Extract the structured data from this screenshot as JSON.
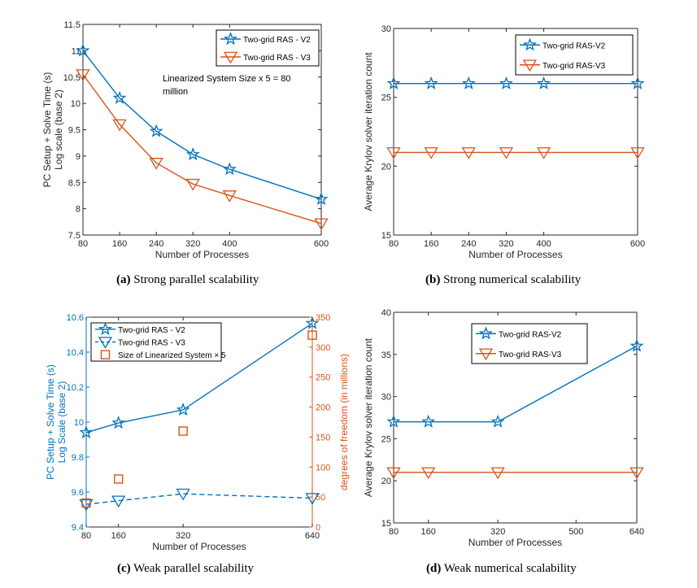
{
  "colors": {
    "blue": "#0072BD",
    "orange": "#D95319",
    "axis": "#262626"
  },
  "chart_data": [
    {
      "id": "a",
      "type": "line",
      "caption_letter": "(a)",
      "caption": "Strong parallel scalability",
      "xlabel": "Number of Processes",
      "ylabel": [
        "PC Setup + Solve Time (s)",
        "Log scale (base 2)"
      ],
      "xlim": [
        80,
        600
      ],
      "ylim": [
        7.5,
        11.5
      ],
      "xticks": [
        80,
        160,
        240,
        320,
        400,
        600
      ],
      "yticks": [
        7.5,
        8,
        8.5,
        9,
        9.5,
        10,
        10.5,
        11,
        11.5
      ],
      "x": [
        80,
        160,
        240,
        320,
        400,
        600
      ],
      "series": [
        {
          "name": "Two-grid RAS - V2",
          "color": "blue",
          "marker": "star",
          "values": [
            11.0,
            10.1,
            9.47,
            9.03,
            8.75,
            8.18
          ]
        },
        {
          "name": "Two-grid RAS - V3",
          "color": "orange",
          "marker": "triangle-down",
          "values": [
            10.55,
            9.6,
            8.87,
            8.47,
            8.25,
            7.72
          ]
        }
      ],
      "legend": "top-right",
      "annotation": [
        "Linearized System Size x 5 = 80",
        "million"
      ]
    },
    {
      "id": "b",
      "type": "line",
      "caption_letter": "(b)",
      "caption": "Strong numerical scalability",
      "xlabel": "Number of Processes",
      "ylabel": [
        "Average Krylov solver iteration count"
      ],
      "xlim": [
        80,
        600
      ],
      "ylim": [
        15,
        30
      ],
      "xticks": [
        80,
        160,
        240,
        320,
        400,
        600
      ],
      "yticks": [
        15,
        20,
        25,
        30
      ],
      "x": [
        80,
        160,
        240,
        320,
        400,
        600
      ],
      "series": [
        {
          "name": "Two-grid RAS-V2",
          "color": "blue",
          "marker": "star",
          "values": [
            26,
            26,
            26,
            26,
            26,
            26
          ]
        },
        {
          "name": "Two-grid RAS-V3",
          "color": "orange",
          "marker": "triangle-down",
          "values": [
            21,
            21,
            21,
            21,
            21,
            21
          ]
        }
      ],
      "legend": "top-right"
    },
    {
      "id": "c",
      "type": "line",
      "caption_letter": "(c)",
      "caption": "Weak parallel scalability",
      "xlabel": "Number of Processes",
      "ylabel": [
        "PC Setup + Solve Time (s)",
        "Log Scale (base 2)"
      ],
      "ylabel_right": "degrees of freedom (in millions)",
      "xlim": [
        80,
        640
      ],
      "ylim": [
        9.4,
        10.6
      ],
      "ylim_right": [
        0,
        350
      ],
      "xticks": [
        80,
        160,
        320,
        640
      ],
      "yticks": [
        9.4,
        9.6,
        9.8,
        10,
        10.2,
        10.4,
        10.6
      ],
      "yticks_right": [
        0,
        50,
        100,
        150,
        200,
        250,
        300,
        350
      ],
      "x": [
        80,
        160,
        320,
        640
      ],
      "series": [
        {
          "name": "Two-grid RAS - V2",
          "color": "blue",
          "marker": "star",
          "line": "solid",
          "axis": "left",
          "values": [
            9.94,
            9.995,
            10.07,
            10.565
          ]
        },
        {
          "name": "Two-grid RAS - V3",
          "color": "blue",
          "marker": "triangle-down",
          "line": "dashed",
          "axis": "left",
          "values": [
            9.53,
            9.55,
            9.59,
            9.565
          ]
        },
        {
          "name": "Size of Linearized System × 5",
          "color": "orange",
          "marker": "square",
          "line": "none",
          "axis": "right",
          "values": [
            40,
            80,
            160,
            320
          ]
        }
      ],
      "legend": "top-left"
    },
    {
      "id": "d",
      "type": "line",
      "caption_letter": "(d)",
      "caption": "Weak numerical scalability",
      "xlabel": "Number of Processes",
      "ylabel": [
        "Average Krylov solver iteration count"
      ],
      "xlim": [
        80,
        640
      ],
      "ylim": [
        15,
        40
      ],
      "xticks": [
        80,
        160,
        320,
        500,
        640
      ],
      "yticks": [
        15,
        20,
        25,
        30,
        35,
        40
      ],
      "x": [
        80,
        160,
        320,
        640
      ],
      "series": [
        {
          "name": "Two-grid RAS-V2",
          "color": "blue",
          "marker": "star",
          "values": [
            27,
            27,
            27,
            36
          ]
        },
        {
          "name": "Two-grid RAS-V3",
          "color": "orange",
          "marker": "triangle-down",
          "values": [
            21,
            21,
            21,
            21
          ]
        }
      ],
      "legend": "top-center"
    }
  ]
}
